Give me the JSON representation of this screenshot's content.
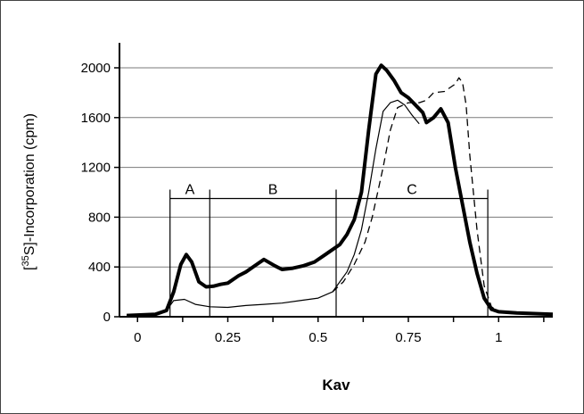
{
  "chart_data": {
    "type": "line",
    "title": "",
    "xlabel": "Kav",
    "ylabel": "[35S]-Incorporation (cpm)",
    "ylabel_parts": {
      "prefix": "[",
      "superscript": "35",
      "suffix": "S]-Incorporation (cpm)"
    },
    "xlim": [
      -0.05,
      1.15
    ],
    "ylim": [
      0,
      2000
    ],
    "x_ticks": [
      0,
      0.25,
      0.5,
      0.75,
      1
    ],
    "x_tick_labels": [
      "0",
      "0.25",
      "0.5",
      "0.75",
      "1"
    ],
    "y_ticks": [
      0,
      400,
      800,
      1200,
      1600,
      2000
    ],
    "y_tick_labels": [
      "0",
      "400",
      "800",
      "1200",
      "1600",
      "2000"
    ],
    "grid": "horizontal",
    "regions": [
      {
        "label": "A",
        "x_start": 0.09,
        "x_end": 0.2,
        "bar_y": 950
      },
      {
        "label": "B",
        "x_start": 0.2,
        "x_end": 0.55,
        "bar_y": 950
      },
      {
        "label": "C",
        "x_start": 0.55,
        "x_end": 0.97,
        "bar_y": 950
      }
    ],
    "series": [
      {
        "style": "thick-solid",
        "x": [
          -0.03,
          0.05,
          0.08,
          0.1,
          0.12,
          0.135,
          0.15,
          0.17,
          0.19,
          0.21,
          0.23,
          0.25,
          0.28,
          0.3,
          0.33,
          0.35,
          0.38,
          0.4,
          0.43,
          0.46,
          0.49,
          0.52,
          0.54,
          0.56,
          0.58,
          0.6,
          0.62,
          0.64,
          0.66,
          0.675,
          0.69,
          0.71,
          0.73,
          0.75,
          0.77,
          0.79,
          0.8,
          0.82,
          0.84,
          0.86,
          0.88,
          0.9,
          0.92,
          0.94,
          0.96,
          0.98,
          1.0,
          1.05,
          1.1,
          1.15
        ],
        "y": [
          10,
          20,
          50,
          200,
          420,
          500,
          440,
          280,
          240,
          245,
          260,
          270,
          330,
          360,
          420,
          460,
          410,
          380,
          390,
          410,
          440,
          500,
          540,
          580,
          660,
          780,
          1000,
          1500,
          1950,
          2020,
          1980,
          1900,
          1800,
          1760,
          1700,
          1640,
          1560,
          1600,
          1670,
          1560,
          1200,
          900,
          600,
          350,
          150,
          60,
          40,
          30,
          25,
          20
        ]
      },
      {
        "style": "thin-solid",
        "x": [
          -0.03,
          0.05,
          0.08,
          0.1,
          0.13,
          0.16,
          0.2,
          0.25,
          0.3,
          0.35,
          0.4,
          0.45,
          0.5,
          0.54,
          0.56,
          0.58,
          0.6,
          0.62,
          0.64,
          0.66,
          0.68,
          0.7,
          0.72,
          0.74,
          0.76,
          0.78
        ],
        "y": [
          10,
          20,
          50,
          130,
          140,
          100,
          80,
          75,
          90,
          100,
          110,
          130,
          150,
          200,
          280,
          360,
          500,
          700,
          1000,
          1350,
          1650,
          1720,
          1740,
          1700,
          1620,
          1550
        ]
      },
      {
        "style": "thin-dashed",
        "x": [
          0.54,
          0.57,
          0.6,
          0.63,
          0.65,
          0.68,
          0.7,
          0.72,
          0.75,
          0.78,
          0.8,
          0.82,
          0.85,
          0.88,
          0.89,
          0.9,
          0.91,
          0.92,
          0.94,
          0.96,
          0.98,
          1.0
        ],
        "y": [
          200,
          280,
          420,
          600,
          800,
          1200,
          1500,
          1680,
          1720,
          1720,
          1740,
          1800,
          1810,
          1870,
          1920,
          1880,
          1700,
          1300,
          700,
          250,
          80,
          40
        ]
      }
    ]
  }
}
